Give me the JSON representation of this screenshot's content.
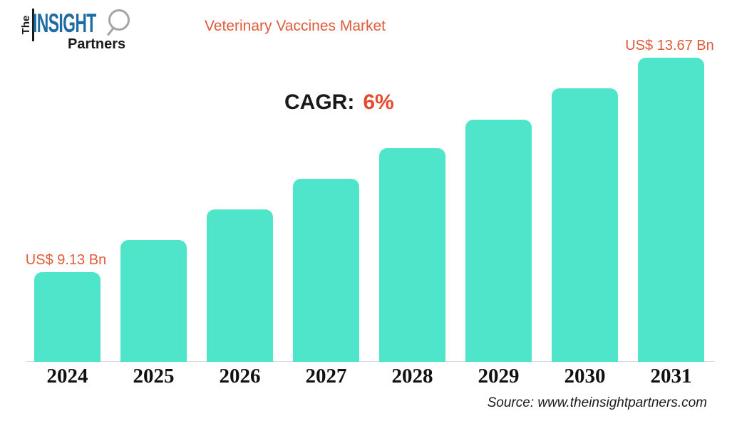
{
  "logo": {
    "the": "The",
    "insight": "INSIGHT",
    "partners": "Partners"
  },
  "title": "Veterinary Vaccines Market",
  "cagr": {
    "label": "CAGR:",
    "value": "6%"
  },
  "source": "Source: www.theinsightpartners.com",
  "colors": {
    "accent-orange": "#E15A3A",
    "cagr-orange": "#E8492D",
    "bar-teal": "#4EE5CB",
    "logo-blue": "#1D6CA3",
    "logo-gray": "#A5A5A5",
    "axis-gray": "#D9D9D9",
    "text-black": "#1A1A1A"
  },
  "chart_data": {
    "type": "bar",
    "title": "Veterinary Vaccines Market",
    "categories": [
      "2024",
      "2025",
      "2026",
      "2027",
      "2028",
      "2029",
      "2030",
      "2031"
    ],
    "values": [
      9.13,
      9.81,
      10.46,
      11.1,
      11.75,
      12.36,
      13.02,
      13.67
    ],
    "unit": "US$ Bn",
    "cagr_percent": 6,
    "annotations": [
      {
        "category": "2024",
        "text": "US$ 9.13 Bn"
      },
      {
        "category": "2031",
        "text": "US$ 13.67 Bn"
      }
    ],
    "xlabel": "",
    "ylabel": "",
    "ylim": [
      7.23,
      13.67
    ],
    "grid": false,
    "legend": false
  }
}
